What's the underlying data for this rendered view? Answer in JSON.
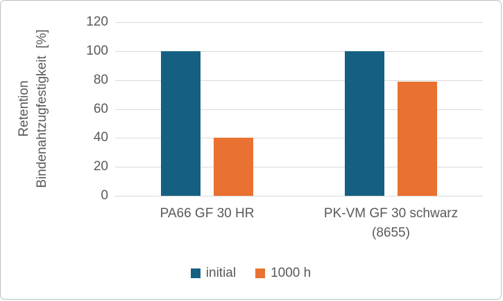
{
  "chart_data": {
    "type": "bar",
    "title": "",
    "categories": [
      "PA66 GF 30 HR",
      "PK-VM GF 30 schwarz (8655)"
    ],
    "categories_display": [
      [
        "PA66 GF 30 HR"
      ],
      [
        "PK-VM GF 30 schwarz",
        "(8655)"
      ]
    ],
    "series": [
      {
        "name": "initial",
        "color": "#156082",
        "values": [
          100,
          100
        ]
      },
      {
        "name": "1000 h",
        "color": "#E97132",
        "values": [
          40,
          79
        ]
      }
    ],
    "ylabel": "Retention Bindenahtzugfestigkeit  [%]",
    "ylabel_lines": [
      "Retention",
      "Bindenahtzugfestigkeit  [%]"
    ],
    "yticks": [
      0,
      20,
      40,
      60,
      80,
      100,
      120
    ],
    "ylim": [
      0,
      120
    ],
    "grid": true,
    "legend_position": "bottom",
    "colors": {
      "text": "#595959",
      "gridline": "#d9d9d9",
      "border": "#bfbfbf",
      "background": "#ffffff"
    }
  }
}
